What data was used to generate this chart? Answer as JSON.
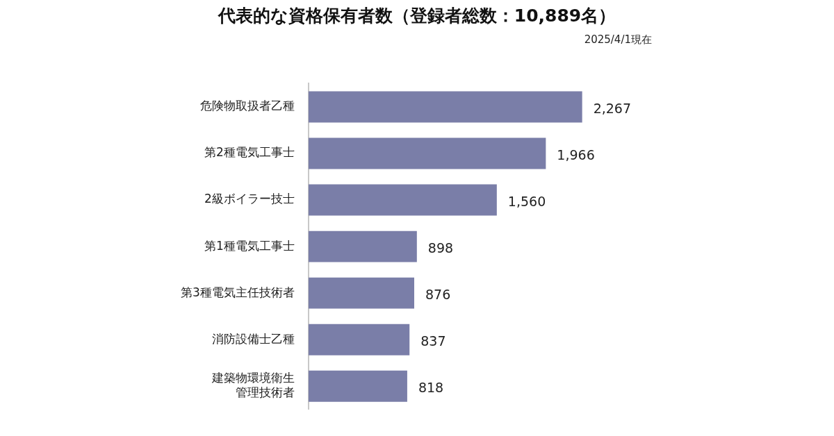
{
  "chart_data": {
    "type": "bar",
    "orientation": "horizontal",
    "title": "代表的な資格保有者数（登録者総数：10,889名）",
    "subtitle": "2025/4/1現在",
    "categories": [
      "危険物取扱者乙種",
      "第2種電気工事士",
      "2級ボイラー技士",
      "第1種電気工事士",
      "第3種電気主任技術者",
      "消防設備士乙種",
      "建築物環境衛生管理技術者"
    ],
    "values": [
      2267,
      1966,
      1560,
      898,
      876,
      837,
      818
    ],
    "value_labels": [
      "2,267",
      "1,966",
      "1,560",
      "898",
      "876",
      "837",
      "818"
    ],
    "color": "#7a7ea8"
  }
}
